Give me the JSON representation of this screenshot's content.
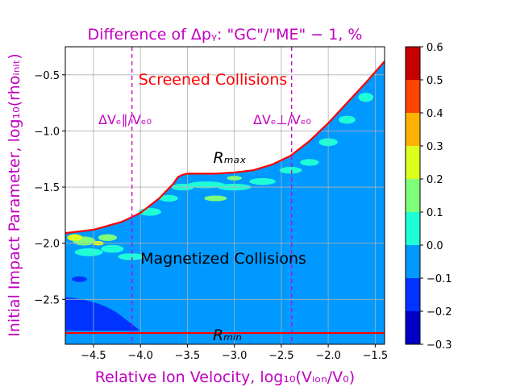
{
  "chart_data": {
    "type": "heatmap",
    "title": "Difference of Δpᵧ: \"GC\"/\"ME\" − 1, %",
    "xlabel": "Relative Ion Velocity,  log₁₀(Vᵢₒₙ/V₀)",
    "ylabel": "Initial Impact Parameter, log₁₀(rhoᵢₙᵢₜ)",
    "xlim": [
      -4.8,
      -1.4
    ],
    "ylim": [
      -2.9,
      -0.25
    ],
    "xticks": [
      -4.5,
      -4.0,
      -3.5,
      -3.0,
      -2.5,
      -2.0,
      -1.5
    ],
    "xtick_labels": [
      "−4.5",
      "−4.0",
      "−3.5",
      "−3.0",
      "−2.5",
      "−2.0",
      "−1.5"
    ],
    "yticks": [
      -2.5,
      -2.0,
      -1.5,
      -1.0,
      -0.5
    ],
    "ytick_labels": [
      "−2.5",
      "−2.0",
      "−1.5",
      "−1.0",
      "−0.5"
    ],
    "grid": true,
    "colorbar": {
      "levels": [
        -0.3,
        -0.2,
        -0.1,
        0.0,
        0.1,
        0.2,
        0.3,
        0.4,
        0.5,
        0.6
      ],
      "tick_labels": [
        "−0.3",
        "−0.2",
        "−0.1",
        "0.0",
        "0.1",
        "0.2",
        "0.3",
        "0.4",
        "0.5",
        "0.6"
      ],
      "colors": [
        "#0000c8",
        "#0033ff",
        "#0099ff",
        "#1effd8",
        "#7dff7a",
        "#dcff1e",
        "#ffb300",
        "#ff4400",
        "#c80000"
      ]
    },
    "background_level_color": "#0099ff",
    "r_max_curve": {
      "x": [
        -4.8,
        -4.5,
        -4.2,
        -4.0,
        -3.8,
        -3.65,
        -3.6,
        -3.55,
        -3.5,
        -3.2,
        -3.0,
        -2.8,
        -2.6,
        -2.4,
        -2.2,
        -2.0,
        -1.8,
        -1.6,
        -1.4
      ],
      "y": [
        -1.91,
        -1.88,
        -1.81,
        -1.73,
        -1.6,
        -1.47,
        -1.41,
        -1.39,
        -1.38,
        -1.38,
        -1.37,
        -1.35,
        -1.3,
        -1.22,
        -1.09,
        -0.93,
        -0.75,
        -0.57,
        -0.38
      ]
    },
    "r_min_level": -2.8,
    "vlines": [
      -4.09,
      -2.39
    ],
    "annotations": {
      "screened": "Screened Collisions",
      "magnetized": "Magnetized Collisions",
      "dv_par": "ΔVₑ∥/Vₑ₀",
      "dv_perp": "ΔVₑ⊥/Vₑ₀",
      "r_max": "Rₘₐₓ",
      "r_min": "Rₘᵢₙ"
    },
    "curve_color": "#ff0000",
    "vline_color": "#c800c8",
    "label_color": "#c000c0"
  }
}
